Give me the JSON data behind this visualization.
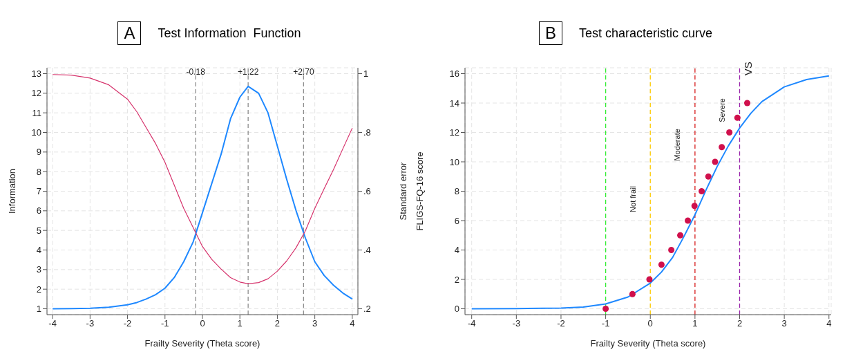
{
  "chart_data": [
    {
      "type": "line",
      "title": "Test Information  Function",
      "annotations": [
        "A"
      ],
      "xlabel": "Frailty Severity (Theta score)",
      "ylabel": "Information",
      "y2label": "Standard error",
      "xlim": [
        -4.15,
        4.15
      ],
      "xticks": [
        -4,
        -3,
        -2,
        -1,
        0,
        1,
        2,
        3,
        4
      ],
      "ylim": [
        0.7,
        13.3
      ],
      "yticks": [
        1,
        2,
        3,
        4,
        5,
        6,
        7,
        8,
        9,
        10,
        11,
        12,
        13
      ],
      "y2lim": [
        0.18,
        1.02
      ],
      "y2ticks": [
        {
          "value": 0.2,
          "label": ".2"
        },
        {
          "value": 0.4,
          "label": ".4"
        },
        {
          "value": 0.6,
          "label": ".6"
        },
        {
          "value": 0.8,
          "label": ".8"
        },
        1
      ],
      "grid": true,
      "line_style": "solid",
      "series": [
        {
          "color": "#1e88ff",
          "x": [
            -4,
            -3.5,
            -3,
            -2.5,
            -2,
            -1.75,
            -1.5,
            -1.25,
            -1,
            -0.75,
            -0.5,
            -0.25,
            0,
            0.25,
            0.5,
            0.75,
            1,
            1.22,
            1.5,
            1.75,
            2,
            2.25,
            2.5,
            2.75,
            3,
            3.25,
            3.5,
            3.75,
            4
          ],
          "values": [
            1.0,
            1.01,
            1.03,
            1.08,
            1.2,
            1.32,
            1.5,
            1.72,
            2.05,
            2.6,
            3.4,
            4.4,
            5.9,
            7.4,
            8.9,
            10.7,
            11.8,
            12.35,
            12.0,
            11.0,
            9.3,
            7.6,
            6.0,
            4.6,
            3.4,
            2.7,
            2.2,
            1.8,
            1.5
          ]
        },
        {
          "color": "#d6336c",
          "axis": "y2",
          "x": [
            -4,
            -3.5,
            -3,
            -2.5,
            -2,
            -1.75,
            -1.5,
            -1.25,
            -1,
            -0.75,
            -0.5,
            -0.25,
            0,
            0.25,
            0.5,
            0.75,
            1,
            1.22,
            1.5,
            1.75,
            2,
            2.25,
            2.5,
            2.75,
            3,
            3.25,
            3.5,
            3.75,
            4
          ],
          "values": [
            0.997,
            0.995,
            0.985,
            0.962,
            0.913,
            0.87,
            0.816,
            0.762,
            0.698,
            0.62,
            0.542,
            0.477,
            0.412,
            0.368,
            0.335,
            0.306,
            0.291,
            0.285,
            0.289,
            0.302,
            0.328,
            0.363,
            0.408,
            0.466,
            0.542,
            0.609,
            0.674,
            0.745,
            0.815
          ]
        }
      ],
      "ref_lines": [
        {
          "axis": "x",
          "value": -0.18,
          "label": "-0.18",
          "color": "#8c8c8c",
          "line_style": "dashed"
        },
        {
          "axis": "x",
          "value": 1.22,
          "label": "+1.22",
          "color": "#8c8c8c",
          "line_style": "dashed"
        },
        {
          "axis": "x",
          "value": 2.7,
          "label": "+2.70",
          "color": "#8c8c8c",
          "line_style": "dashed"
        }
      ]
    },
    {
      "type": "line",
      "title": "Test characteristic curve",
      "annotations": [
        "B"
      ],
      "xlabel": "Frailty Severity (Theta score)",
      "ylabel": "FLIGS-FQ-16 score",
      "xlim": [
        -4.15,
        4.05
      ],
      "xticks": [
        -4,
        -3,
        -2,
        -1,
        0,
        1,
        2,
        3,
        4
      ],
      "ylim": [
        -0.4,
        16.4
      ],
      "yticks": [
        0,
        2,
        4,
        6,
        8,
        10,
        12,
        14,
        16
      ],
      "grid": true,
      "line_style": "solid",
      "series": [
        {
          "color": "#1e88ff",
          "x": [
            -4,
            -3,
            -2,
            -1.5,
            -1,
            -0.5,
            0,
            0.25,
            0.5,
            0.75,
            1,
            1.25,
            1.5,
            1.75,
            2,
            2.25,
            2.5,
            3,
            3.5,
            4
          ],
          "values": [
            0,
            0.01,
            0.05,
            0.12,
            0.33,
            0.8,
            1.75,
            2.5,
            3.5,
            4.9,
            6.4,
            8.1,
            9.7,
            11.1,
            12.3,
            13.3,
            14.1,
            15.1,
            15.6,
            15.85
          ]
        },
        {
          "type": "scatter",
          "marker": "circle",
          "color": "#d0104c",
          "x": [
            -1.0,
            -0.4,
            -0.02,
            0.25,
            0.47,
            0.67,
            0.84,
            0.99,
            1.15,
            1.3,
            1.45,
            1.6,
            1.77,
            1.95,
            2.17
          ],
          "values": [
            0,
            1,
            2,
            3,
            4,
            5,
            6,
            7,
            8,
            9,
            10,
            11,
            12,
            13,
            14
          ]
        }
      ],
      "ref_lines": [
        {
          "axis": "x",
          "value": -1,
          "label": "Not frail",
          "color": "#33ee33",
          "line_style": "dashed"
        },
        {
          "axis": "x",
          "value": 0,
          "label": "Moderate",
          "color": "#ffcc00",
          "line_style": "dashed"
        },
        {
          "axis": "x",
          "value": 1,
          "label": "Severe",
          "color": "#dd2222",
          "line_style": "dashed"
        },
        {
          "axis": "x",
          "value": 2,
          "label": "VS",
          "color": "#9922aa",
          "line_style": "dashed"
        }
      ]
    }
  ]
}
